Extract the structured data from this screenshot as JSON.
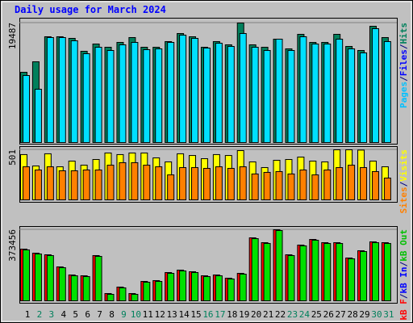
{
  "chart_data": [
    {
      "type": "bar",
      "title": "Daily usage for March 2024",
      "ylim": [
        0,
        19487
      ],
      "yticks": [
        19487
      ],
      "grid": true,
      "legend": [
        {
          "label": "Pages",
          "color": "#00c0ff"
        },
        {
          "label": "/",
          "color": "#000080"
        },
        {
          "label": "Files",
          "color": "#0000ff"
        },
        {
          "label": "/",
          "color": "#000080"
        },
        {
          "label": "Hits",
          "color": "#00805c"
        }
      ],
      "series": [
        {
          "color": "#00805c",
          "values": [
            11455,
            13167,
            17249,
            17249,
            16985,
            14879,
            16064,
            15537,
            16327,
            17117,
            15537,
            15537,
            16459,
            17775,
            17249,
            15537,
            16459,
            15932,
            19487,
            15932,
            15537,
            16854,
            15274,
            17644,
            16327,
            16327,
            17644,
            15669,
            15010,
            18960,
            17117
          ]
        },
        {
          "color": "#00e0ff",
          "values": [
            10929,
            8690,
            17117,
            17117,
            16590,
            14484,
            15537,
            15010,
            15932,
            16327,
            15142,
            15274,
            16327,
            17512,
            16985,
            15405,
            16195,
            15669,
            17775,
            15537,
            15010,
            16854,
            15010,
            17249,
            16064,
            16064,
            16854,
            15274,
            14616,
            18565,
            16459
          ]
        }
      ]
    },
    {
      "type": "bar",
      "ylim": [
        0,
        501
      ],
      "yticks": [
        501
      ],
      "grid": true,
      "legend": [
        {
          "label": "Sites",
          "color": "#ff8000"
        },
        {
          "label": "/",
          "color": "#000080"
        },
        {
          "label": "Visits",
          "color": "#ffff00"
        }
      ],
      "series": [
        {
          "color": "#ffff00",
          "values": [
            453,
            339,
            461,
            331,
            388,
            347,
            404,
            469,
            453,
            469,
            469,
            420,
            380,
            461,
            444,
            412,
            453,
            444,
            493,
            380,
            323,
            396,
            404,
            428,
            388,
            380,
            501,
            501,
            498,
            388,
            331
          ]
        },
        {
          "color": "#ff8000",
          "values": [
            331,
            299,
            331,
            291,
            291,
            299,
            299,
            347,
            372,
            372,
            347,
            331,
            250,
            323,
            323,
            315,
            331,
            315,
            331,
            259,
            275,
            283,
            259,
            299,
            250,
            299,
            323,
            347,
            323,
            283,
            218
          ]
        }
      ]
    },
    {
      "type": "bar",
      "ylim": [
        0,
        373456
      ],
      "yticks": [
        373456
      ],
      "grid": true,
      "legend": [
        {
          "label": "kB F",
          "color": "#ff0000"
        },
        {
          "label": "/",
          "color": "#000080"
        },
        {
          "label": "kB In",
          "color": "#0000ff"
        },
        {
          "label": "/",
          "color": "#000080"
        },
        {
          "label": "kB Out",
          "color": "#00c000"
        }
      ],
      "categories": [
        "1",
        "2",
        "3",
        "4",
        "5",
        "6",
        "7",
        "8",
        "9",
        "10",
        "11",
        "12",
        "13",
        "14",
        "15",
        "16",
        "17",
        "18",
        "19",
        "20",
        "21",
        "22",
        "23",
        "24",
        "25",
        "26",
        "27",
        "28",
        "29",
        "30",
        "31"
      ],
      "category_colors": [
        "#000000",
        "#00805c",
        "#00805c",
        "#000000",
        "#000000",
        "#000000",
        "#000000",
        "#000000",
        "#00805c",
        "#00805c",
        "#000000",
        "#000000",
        "#000000",
        "#000000",
        "#000000",
        "#00805c",
        "#00805c",
        "#000000",
        "#000000",
        "#000000",
        "#000000",
        "#000000",
        "#00805c",
        "#00805c",
        "#000000",
        "#000000",
        "#000000",
        "#000000",
        "#000000",
        "#00805c",
        "#00805c"
      ],
      "series": [
        {
          "color": "#ff0000",
          "values": [
            271616,
            250396,
            241908,
            178248,
            135808,
            131564,
            237664,
            38196,
            72148,
            38196,
            101856,
            106100,
            148540,
            161272,
            152784,
            131564,
            135808,
            118832,
            144296,
            331032,
            305568,
            373456,
            241908,
            292836,
            322544,
            305568,
            305568,
            224932,
            263128,
            309812,
            305568
          ]
        },
        {
          "color": "#00e000",
          "values": [
            267372,
            246152,
            237664,
            174004,
            131564,
            127320,
            233420,
            33952,
            67904,
            33952,
            97612,
            101856,
            144296,
            157028,
            148540,
            127320,
            131564,
            114588,
            140052,
            326788,
            301324,
            369228,
            237664,
            288592,
            318300,
            301324,
            301324,
            220688,
            258884,
            305568,
            301324
          ]
        }
      ]
    }
  ]
}
